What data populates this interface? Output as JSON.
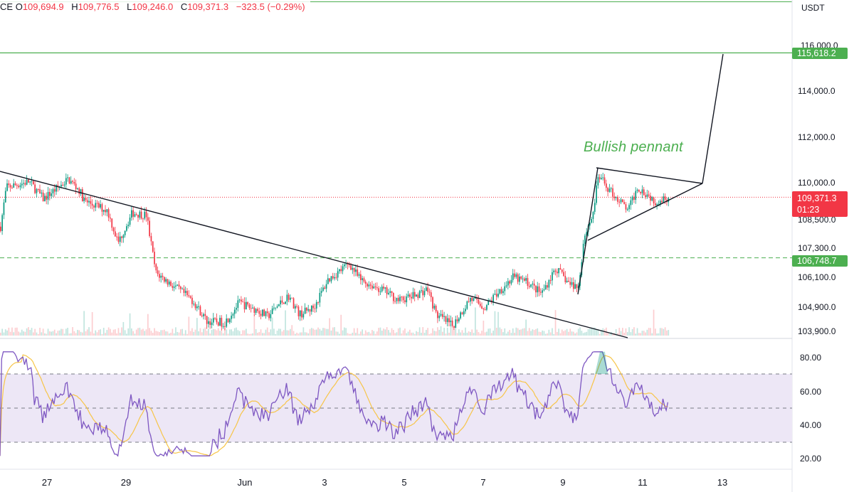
{
  "header": {
    "symbol_fragment": "CE",
    "open_label": "O",
    "open": "109,694.9",
    "high_label": "H",
    "high": "109,776.5",
    "low_label": "L",
    "low": "109,246.0",
    "close_label": "C",
    "close": "109,371.3",
    "change": "−323.5 (−0.29%)",
    "down_color": "#f23645"
  },
  "axis": {
    "currency": "USDT",
    "price_ticks": [
      "116,000.0",
      "114,000.0",
      "112,000.0",
      "110,000.0",
      "108,500.0",
      "107,300.0",
      "106,100.0",
      "104,900.0",
      "103,900.0"
    ],
    "rsi_ticks": [
      "80.00",
      "60.00",
      "40.00",
      "20.00"
    ],
    "date_ticks": [
      "27",
      "29",
      "Jun",
      "3",
      "5",
      "7",
      "9",
      "11",
      "13"
    ]
  },
  "tags": {
    "target": "115,618.2",
    "last_price": "109,371.3",
    "countdown": "01:23",
    "support": "106,748.7",
    "target_color": "#4caf50",
    "last_color": "#f23645",
    "support_color": "#4caf50"
  },
  "annotation": {
    "pattern_label": "Bullish pennant"
  },
  "chart_data": {
    "type": "candlestick",
    "price_levels": {
      "target": 115618.2,
      "support": 106748.7,
      "last": 109371.3
    },
    "price_axis_range": [
      103900,
      116000
    ],
    "rsi": {
      "upper_band": 70,
      "lower_band": 30,
      "midline": 50,
      "axis_range": [
        20,
        80
      ]
    },
    "trendlines": [
      {
        "name": "downtrend",
        "from": {
          "x": "May 25",
          "y": 110500
        },
        "to": {
          "x": "Jun 10",
          "y": 103900
        }
      },
      {
        "name": "pennant-upper",
        "from": {
          "x": "Jun 9",
          "y": 110600
        },
        "to": {
          "x": "Jun 12",
          "y": 110000
        }
      },
      {
        "name": "pennant-lower",
        "from": {
          "x": "Jun 9",
          "y": 107500
        },
        "to": {
          "x": "Jun 12",
          "y": 110000
        }
      },
      {
        "name": "projection",
        "from": {
          "x": "Jun 12",
          "y": 110000
        },
        "to": {
          "x": "Jun 13",
          "y": 115618.2
        }
      }
    ],
    "colors": {
      "up": "#089981",
      "down": "#f23645",
      "rsi_line": "#7e57c2",
      "rsi_ma": "#f7c548",
      "rsi_band": "#ede7f6"
    }
  }
}
